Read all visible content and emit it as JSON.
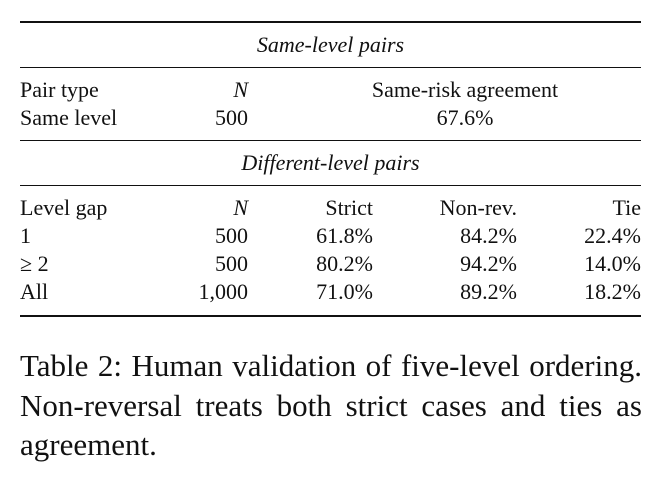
{
  "table": {
    "sections": [
      {
        "title": "Same-level pairs",
        "header": [
          "Pair type",
          "N",
          "Same-risk agreement"
        ],
        "rows": [
          [
            "Same level",
            "500",
            "67.6%"
          ]
        ]
      },
      {
        "title": "Different-level pairs",
        "header": [
          "Level gap",
          "N",
          "Strict",
          "Non-rev.",
          "Tie"
        ],
        "rows": [
          [
            "1",
            "500",
            "61.8%",
            "84.2%",
            "22.4%"
          ],
          [
            "≥ 2",
            "500",
            "80.2%",
            "94.2%",
            "14.0%"
          ],
          [
            "All",
            "1,000",
            "71.0%",
            "89.2%",
            "18.2%"
          ]
        ]
      }
    ]
  },
  "caption": "Table 2: Human validation of five-level ordering. Non-reversal treats both strict cases and ties as agreement."
}
